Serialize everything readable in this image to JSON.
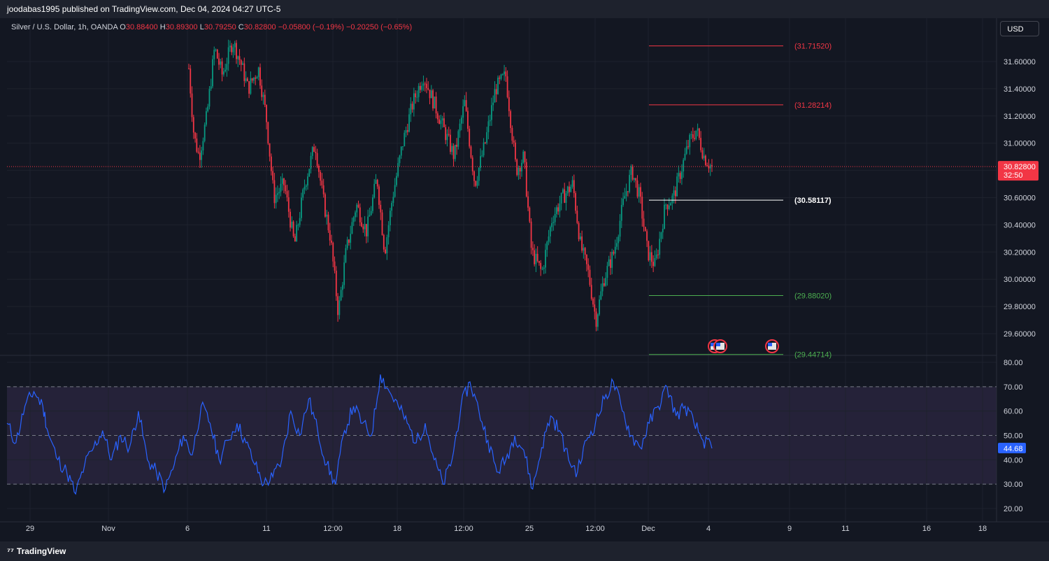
{
  "header": {
    "published_text": "joodabas1995 published on TradingView.com, Dec 04, 2024 04:27 UTC-5"
  },
  "footer": {
    "brand": "TradingView",
    "logo_icon": "tradingview-logo-icon"
  },
  "toolbar": {
    "currency": "USD"
  },
  "legend": {
    "symbol": "Silver / U.S. Dollar, 1h, OANDA",
    "o_label": "O",
    "o_value": "30.88400",
    "h_label": "H",
    "h_value": "30.89300",
    "l_label": "L",
    "l_value": "30.79250",
    "c_label": "C",
    "c_value": "30.82800",
    "change": "−0.05800 (−0.19%)",
    "change2": "−0.20250 (−0.65%)"
  },
  "colors": {
    "background": "#131722",
    "grid": "#1e222d",
    "up": "#089981",
    "down": "#f23645",
    "rsi_line": "#2962ff",
    "rsi_band": "#2a2540",
    "price_badge": "#f23645",
    "rsi_badge": "#2962ff"
  },
  "chart_data": [
    {
      "type": "candlestick",
      "title": "Silver / U.S. Dollar, 1h, OANDA",
      "ylim": [
        29.5,
        31.75
      ],
      "y_ticks": [
        "31.60000",
        "31.40000",
        "31.20000",
        "31.00000",
        "30.80000",
        "30.60000",
        "30.40000",
        "30.20000",
        "30.00000",
        "29.80000",
        "29.60000"
      ],
      "x_ticks": [
        "29",
        "Nov",
        "6",
        "11",
        "12:00",
        "18",
        "12:00",
        "25",
        "12:00",
        "Dec",
        "4",
        "9",
        "11",
        "16",
        "18"
      ],
      "last_price": "30.82800",
      "countdown": "32:50",
      "path_points": [
        [
          0.0,
          31.05
        ],
        [
          0.3,
          31.55
        ],
        [
          0.5,
          31.05
        ],
        [
          0.7,
          30.9
        ],
        [
          1.0,
          31.2
        ],
        [
          1.3,
          31.7
        ],
        [
          1.6,
          31.5
        ],
        [
          2.0,
          31.75
        ],
        [
          2.3,
          31.6
        ],
        [
          2.6,
          31.4
        ],
        [
          3.0,
          31.55
        ],
        [
          3.3,
          31.2
        ],
        [
          3.6,
          30.6
        ],
        [
          4.0,
          30.7
        ],
        [
          4.4,
          30.25
        ],
        [
          4.8,
          30.7
        ],
        [
          5.2,
          31.0
        ],
        [
          5.5,
          30.6
        ],
        [
          5.8,
          30.3
        ],
        [
          6.1,
          29.75
        ],
        [
          6.4,
          30.2
        ],
        [
          6.8,
          30.55
        ],
        [
          7.2,
          30.35
        ],
        [
          7.6,
          30.75
        ],
        [
          7.9,
          30.2
        ],
        [
          8.2,
          30.6
        ],
        [
          8.6,
          31.0
        ],
        [
          9.0,
          31.3
        ],
        [
          9.4,
          31.5
        ],
        [
          9.8,
          31.3
        ],
        [
          10.2,
          31.1
        ],
        [
          10.6,
          30.9
        ],
        [
          11.0,
          31.3
        ],
        [
          11.4,
          30.7
        ],
        [
          11.8,
          31.0
        ],
        [
          12.2,
          31.4
        ],
        [
          12.6,
          31.5
        ],
        [
          13.0,
          30.8
        ],
        [
          13.3,
          30.9
        ],
        [
          13.6,
          30.2
        ],
        [
          14.0,
          30.05
        ],
        [
          14.4,
          30.45
        ],
        [
          14.8,
          30.6
        ],
        [
          15.2,
          30.7
        ],
        [
          15.5,
          30.25
        ],
        [
          15.8,
          30.05
        ],
        [
          16.1,
          29.7
        ],
        [
          16.4,
          30.0
        ],
        [
          16.8,
          30.2
        ],
        [
          17.2,
          30.6
        ],
        [
          17.5,
          30.8
        ],
        [
          17.8,
          30.6
        ],
        [
          18.1,
          30.2
        ],
        [
          18.4,
          30.1
        ],
        [
          18.8,
          30.55
        ],
        [
          19.1,
          30.6
        ],
        [
          19.4,
          30.8
        ],
        [
          19.7,
          31.0
        ],
        [
          20.0,
          31.1
        ],
        [
          20.3,
          30.9
        ],
        [
          20.6,
          30.82
        ]
      ],
      "lines": [
        {
          "label": "(31.71520)",
          "value": 31.7152,
          "color": "#f23645"
        },
        {
          "label": "(31.28214)",
          "value": 31.28214,
          "color": "#f23645"
        },
        {
          "label": "(30.58117)",
          "value": 30.58117,
          "color": "#ffffff"
        },
        {
          "label": "(29.88020)",
          "value": 29.8802,
          "color": "#4caf50"
        },
        {
          "label": "(29.44714)",
          "value": 29.44714,
          "color": "#4caf50"
        }
      ],
      "events": [
        {
          "day": 20.8,
          "icon": "us-flag-icon"
        },
        {
          "day": 21.05,
          "icon": "us-flag-icon"
        },
        {
          "day": 22.2,
          "icon": "us-flag-icon"
        }
      ]
    },
    {
      "type": "line",
      "title": "RSI",
      "ylim": [
        15,
        82
      ],
      "y_ticks": [
        "80.00",
        "70.00",
        "60.00",
        "50.00",
        "40.00",
        "30.00",
        "20.00"
      ],
      "bands": [
        30,
        50,
        70
      ],
      "last_value": "44.68",
      "points": [
        [
          0.0,
          55
        ],
        [
          0.3,
          47
        ],
        [
          0.6,
          62
        ],
        [
          0.9,
          68
        ],
        [
          1.2,
          62
        ],
        [
          1.4,
          50
        ],
        [
          1.7,
          40
        ],
        [
          2.0,
          35
        ],
        [
          2.3,
          26
        ],
        [
          2.6,
          38
        ],
        [
          2.9,
          45
        ],
        [
          3.2,
          52
        ],
        [
          3.5,
          40
        ],
        [
          3.8,
          50
        ],
        [
          4.1,
          45
        ],
        [
          4.4,
          60
        ],
        [
          4.7,
          40
        ],
        [
          5.0,
          35
        ],
        [
          5.3,
          28
        ],
        [
          5.6,
          38
        ],
        [
          5.9,
          50
        ],
        [
          6.2,
          42
        ],
        [
          6.5,
          62
        ],
        [
          6.8,
          55
        ],
        [
          7.1,
          40
        ],
        [
          7.4,
          48
        ],
        [
          7.7,
          55
        ],
        [
          8.0,
          47
        ],
        [
          8.3,
          38
        ],
        [
          8.6,
          30
        ],
        [
          8.9,
          33
        ],
        [
          9.2,
          40
        ],
        [
          9.5,
          60
        ],
        [
          9.8,
          50
        ],
        [
          10.1,
          65
        ],
        [
          10.4,
          52
        ],
        [
          10.7,
          38
        ],
        [
          11.0,
          30
        ],
        [
          11.3,
          52
        ],
        [
          11.6,
          62
        ],
        [
          11.9,
          55
        ],
        [
          12.2,
          50
        ],
        [
          12.5,
          75
        ],
        [
          12.8,
          68
        ],
        [
          13.1,
          62
        ],
        [
          13.4,
          55
        ],
        [
          13.7,
          47
        ],
        [
          14.0,
          55
        ],
        [
          14.3,
          40
        ],
        [
          14.6,
          30
        ],
        [
          14.9,
          40
        ],
        [
          15.2,
          62
        ],
        [
          15.5,
          72
        ],
        [
          15.8,
          60
        ],
        [
          16.1,
          48
        ],
        [
          16.4,
          35
        ],
        [
          16.7,
          40
        ],
        [
          17.0,
          50
        ],
        [
          17.3,
          44
        ],
        [
          17.6,
          28
        ],
        [
          17.9,
          45
        ],
        [
          18.2,
          58
        ],
        [
          18.5,
          52
        ],
        [
          18.8,
          40
        ],
        [
          19.1,
          35
        ],
        [
          19.4,
          48
        ],
        [
          19.7,
          55
        ],
        [
          20.0,
          65
        ],
        [
          20.3,
          72
        ],
        [
          20.6,
          60
        ],
        [
          20.9,
          50
        ],
        [
          21.2,
          45
        ],
        [
          21.5,
          55
        ],
        [
          21.8,
          62
        ],
        [
          22.1,
          70
        ],
        [
          22.4,
          58
        ],
        [
          22.7,
          62
        ],
        [
          23.0,
          55
        ],
        [
          23.3,
          48
        ],
        [
          23.6,
          44.68
        ]
      ]
    }
  ]
}
